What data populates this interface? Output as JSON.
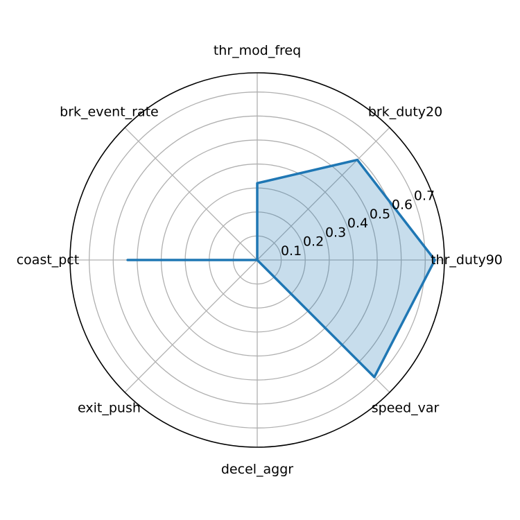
{
  "chart_data": {
    "type": "radar",
    "axes": [
      "thr_duty90",
      "brk_duty20",
      "thr_mod_freq",
      "brk_event_rate",
      "coast_pct",
      "exit_push",
      "decel_aggr",
      "speed_var"
    ],
    "values": [
      0.74,
      0.59,
      0.32,
      0.0,
      0.54,
      0.0,
      0.0,
      0.69
    ],
    "r_max": 0.78,
    "r_ticks": [
      0.1,
      0.2,
      0.3,
      0.4,
      0.5,
      0.6,
      0.7
    ],
    "r_tick_labels": [
      "0.1",
      "0.2",
      "0.3",
      "0.4",
      "0.5",
      "0.6",
      "0.7"
    ],
    "grid": true,
    "colors": {
      "line": "#1f77b4",
      "fill": "#1f77b4",
      "grid": "#b0b0b0",
      "frame": "#000000"
    }
  }
}
